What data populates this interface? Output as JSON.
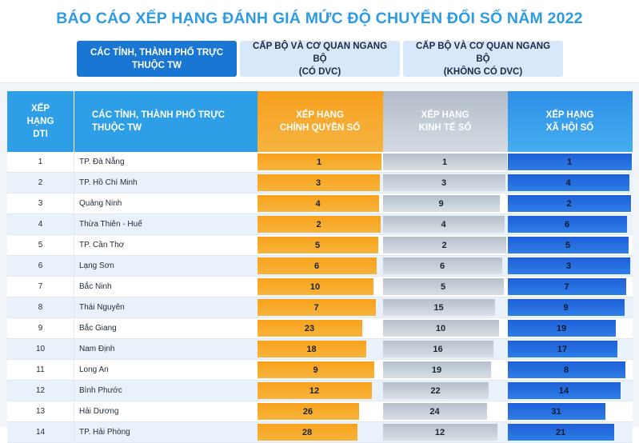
{
  "title": "BÁO CÁO XẾP HẠNG ĐÁNH GIÁ MỨC ĐỘ CHUYỂN ĐỔI SỐ NĂM 2022",
  "tabs": [
    {
      "label": "CÁC TỈNH, THÀNH PHỐ TRỰC\nTHUỘC TW",
      "active": true
    },
    {
      "label": "CẤP BỘ VÀ CƠ QUAN NGANG BỘ\n(CÓ DVC)",
      "active": false
    },
    {
      "label": "CẤP BỘ VÀ CƠ QUAN NGANG BỘ\n(KHÔNG CÓ DVC)",
      "active": false
    }
  ],
  "table": {
    "headers": {
      "rank": "XẾP\nHẠNG\nDTI",
      "name": "CÁC TỈNH, THÀNH PHỐ TRỰC\nTHUỘC TW",
      "gov": "XẾP HẠNG\nCHÍNH QUYỀN SỐ",
      "eco": "XẾP HẠNG\nKINH TẾ SỐ",
      "soc": "XẾP HẠNG\nXÃ HỘI SỐ"
    },
    "rows": [
      {
        "rank": "1",
        "name": "TP. Đà Nẵng",
        "gov": 1,
        "eco": 1,
        "soc": 1
      },
      {
        "rank": "2",
        "name": "TP. Hồ Chí Minh",
        "gov": 3,
        "eco": 3,
        "soc": 4
      },
      {
        "rank": "3",
        "name": "Quảng Ninh",
        "gov": 4,
        "eco": 9,
        "soc": 2
      },
      {
        "rank": "4",
        "name": "Thừa Thiên - Huế",
        "gov": 2,
        "eco": 4,
        "soc": 6
      },
      {
        "rank": "5",
        "name": "TP. Cần Thơ",
        "gov": 5,
        "eco": 2,
        "soc": 5
      },
      {
        "rank": "6",
        "name": "Lạng Sơn",
        "gov": 6,
        "eco": 6,
        "soc": 3
      },
      {
        "rank": "7",
        "name": "Bắc Ninh",
        "gov": 10,
        "eco": 5,
        "soc": 7
      },
      {
        "rank": "8",
        "name": "Thái Nguyên",
        "gov": 7,
        "eco": 15,
        "soc": 9
      },
      {
        "rank": "9",
        "name": "Bắc Giang",
        "gov": 23,
        "eco": 10,
        "soc": 19
      },
      {
        "rank": "10",
        "name": "Nam Định",
        "gov": 18,
        "eco": 16,
        "soc": 17
      },
      {
        "rank": "11",
        "name": "Long An",
        "gov": 9,
        "eco": 19,
        "soc": 8
      },
      {
        "rank": "12",
        "name": "Bình Phước",
        "gov": 12,
        "eco": 22,
        "soc": 14
      },
      {
        "rank": "13",
        "name": "Hải Dương",
        "gov": 26,
        "eco": 24,
        "soc": 31
      },
      {
        "rank": "14",
        "name": "TP. Hải Phòng",
        "gov": 28,
        "eco": 12,
        "soc": 21
      }
    ]
  },
  "colors": {
    "title": "#2e9be0",
    "tab_active": "#1976d2",
    "tab_inactive": "#d6e8f9",
    "gov": "#f7a01e",
    "eco": "#c3cbd5",
    "soc": "#2563dd"
  }
}
